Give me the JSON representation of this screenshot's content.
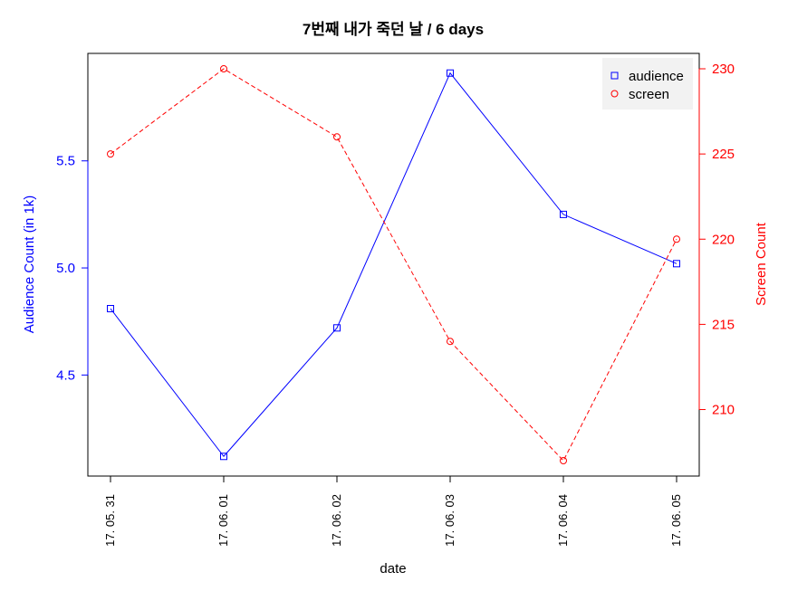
{
  "chart_data": {
    "type": "line",
    "title": "7번째 내가 죽던 날 / 6 days",
    "xlabel": "date",
    "categories": [
      "17. 05. 31",
      "17. 06. 01",
      "17. 06. 02",
      "17. 06. 03",
      "17. 06. 04",
      "17. 06. 05"
    ],
    "series": [
      {
        "name": "audience",
        "axis": "left",
        "ylabel": "Audience Count (in 1k)",
        "color": "#0000ff",
        "marker": "square",
        "line_style": "solid",
        "values": [
          4.81,
          4.12,
          4.72,
          5.91,
          5.25,
          5.02
        ],
        "ylim": [
          4.1,
          5.93
        ],
        "ticks": [
          4.5,
          5.0,
          5.5
        ],
        "tick_labels": [
          "4.5",
          "5.0",
          "5.5"
        ]
      },
      {
        "name": "screen",
        "axis": "right",
        "ylabel": "Screen Count",
        "color": "#ff0000",
        "marker": "circle",
        "line_style": "dashed",
        "values": [
          225,
          230,
          226,
          214,
          207,
          220
        ],
        "ylim": [
          207,
          230
        ],
        "ticks": [
          210,
          215,
          220,
          225,
          230
        ],
        "tick_labels": [
          "210",
          "215",
          "220",
          "225",
          "230"
        ]
      }
    ],
    "legend": {
      "position": "top-right",
      "entries": [
        "audience",
        "screen"
      ]
    },
    "grid": false
  }
}
